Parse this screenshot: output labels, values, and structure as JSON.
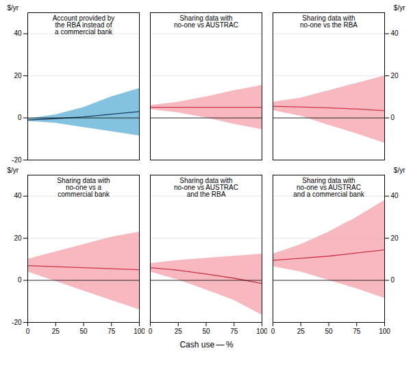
{
  "chart_data": [
    {
      "type": "line",
      "title": "Account provided by\nthe RBA instead of\na commercial bank",
      "x": [
        0,
        25,
        50,
        75,
        100
      ],
      "xlim": [
        0,
        100
      ],
      "ylim": [
        -20,
        50
      ],
      "yticks": [
        -20,
        0,
        20,
        40
      ],
      "grid": true,
      "tick_labels": "y",
      "ylabel": "$/yr",
      "series": [
        {
          "type": "area",
          "color": "#5aafd6",
          "lower": [
            -1.5,
            -2.5,
            -4.5,
            -6.5,
            -8.5
          ],
          "upper": [
            -0.5,
            1.5,
            5.0,
            10.0,
            14.0
          ]
        },
        {
          "type": "line",
          "color": "#1a3a5c",
          "values": [
            -1.0,
            -0.3,
            0.5,
            1.8,
            3.0
          ]
        }
      ]
    },
    {
      "type": "line",
      "title": "Sharing data with\nno-one vs AUSTRAC",
      "x": [
        0,
        25,
        50,
        75,
        100
      ],
      "xlim": [
        0,
        100
      ],
      "ylim": [
        -20,
        50
      ],
      "yticks": [
        -20,
        0,
        20,
        40
      ],
      "grid": true,
      "tick_labels": false,
      "series": [
        {
          "type": "area",
          "color": "#f5a0aa",
          "lower": [
            4.0,
            2.5,
            0.0,
            -3.0,
            -5.5
          ],
          "upper": [
            6.0,
            7.5,
            10.0,
            13.0,
            15.5
          ]
        },
        {
          "type": "line",
          "color": "#cc3344",
          "values": [
            5.0,
            5.0,
            5.0,
            5.0,
            5.0
          ]
        }
      ]
    },
    {
      "type": "line",
      "title": "Sharing data with\nno-one vs the RBA",
      "x": [
        0,
        25,
        50,
        75,
        100
      ],
      "xlim": [
        0,
        100
      ],
      "ylim": [
        -20,
        50
      ],
      "yticks": [
        -20,
        0,
        20,
        40
      ],
      "grid": true,
      "tick_labels": false,
      "y2lim": [
        -20,
        50
      ],
      "y2ticks": [
        0,
        20,
        40
      ],
      "y2label": "$/yr",
      "series": [
        {
          "type": "area",
          "color": "#f5a0aa",
          "lower": [
            3.5,
            0.8,
            -3.5,
            -7.5,
            -12.0
          ],
          "upper": [
            7.5,
            9.5,
            13.0,
            16.5,
            20.0
          ]
        },
        {
          "type": "line",
          "color": "#cc3344",
          "values": [
            5.5,
            5.2,
            4.8,
            4.2,
            3.5
          ]
        }
      ]
    },
    {
      "type": "line",
      "title": "Sharing data with\nno-one vs a\ncommercial bank",
      "x": [
        0,
        25,
        50,
        75,
        100
      ],
      "xlim": [
        0,
        100
      ],
      "xticks": [
        0,
        25,
        50,
        75,
        100
      ],
      "ylim": [
        -20,
        50
      ],
      "yticks": [
        -20,
        0,
        20,
        40
      ],
      "grid": true,
      "ylabel": "$/yr",
      "series": [
        {
          "type": "area",
          "color": "#f5a0aa",
          "lower": [
            4.0,
            -0.5,
            -5.0,
            -9.5,
            -14.0
          ],
          "upper": [
            10.0,
            13.5,
            17.0,
            20.5,
            23.0
          ]
        },
        {
          "type": "line",
          "color": "#cc3344",
          "values": [
            7.0,
            6.5,
            6.0,
            5.5,
            5.0
          ]
        }
      ]
    },
    {
      "type": "line",
      "title": "Sharing data with\nno-one vs AUSTRAC\nand the RBA",
      "x": [
        0,
        25,
        50,
        75,
        100
      ],
      "xlim": [
        0,
        100
      ],
      "xticks": [
        0,
        25,
        50,
        75,
        100
      ],
      "ylim": [
        -20,
        50
      ],
      "yticks": [
        -20,
        0,
        20,
        40
      ],
      "grid": true,
      "tick_labels": "x",
      "xlabel": "Cash use — %",
      "series": [
        {
          "type": "area",
          "color": "#f5a0aa",
          "lower": [
            4.0,
            0.2,
            -4.5,
            -9.5,
            -16.5
          ],
          "upper": [
            8.0,
            9.5,
            10.5,
            11.5,
            12.5
          ]
        },
        {
          "type": "line",
          "color": "#cc3344",
          "values": [
            6.0,
            4.8,
            3.0,
            1.0,
            -1.5
          ]
        }
      ]
    },
    {
      "type": "line",
      "title": "Sharing data with\nno-one vs AUSTRAC\nand a commercial bank",
      "x": [
        0,
        25,
        50,
        75,
        100
      ],
      "xlim": [
        0,
        100
      ],
      "xticks": [
        0,
        25,
        50,
        75,
        100
      ],
      "ylim": [
        -20,
        50
      ],
      "yticks": [
        -20,
        0,
        20,
        40
      ],
      "grid": true,
      "tick_labels": "x",
      "y2lim": [
        -20,
        50
      ],
      "y2ticks": [
        0,
        20,
        40
      ],
      "y2label": "$/yr",
      "series": [
        {
          "type": "area",
          "color": "#f5a0aa",
          "lower": [
            6.5,
            4.0,
            0.0,
            -4.0,
            -8.5
          ],
          "upper": [
            12.5,
            17.0,
            23.0,
            30.0,
            38.0
          ]
        },
        {
          "type": "line",
          "color": "#cc3344",
          "values": [
            9.5,
            10.5,
            11.5,
            13.0,
            14.5
          ]
        }
      ]
    }
  ]
}
